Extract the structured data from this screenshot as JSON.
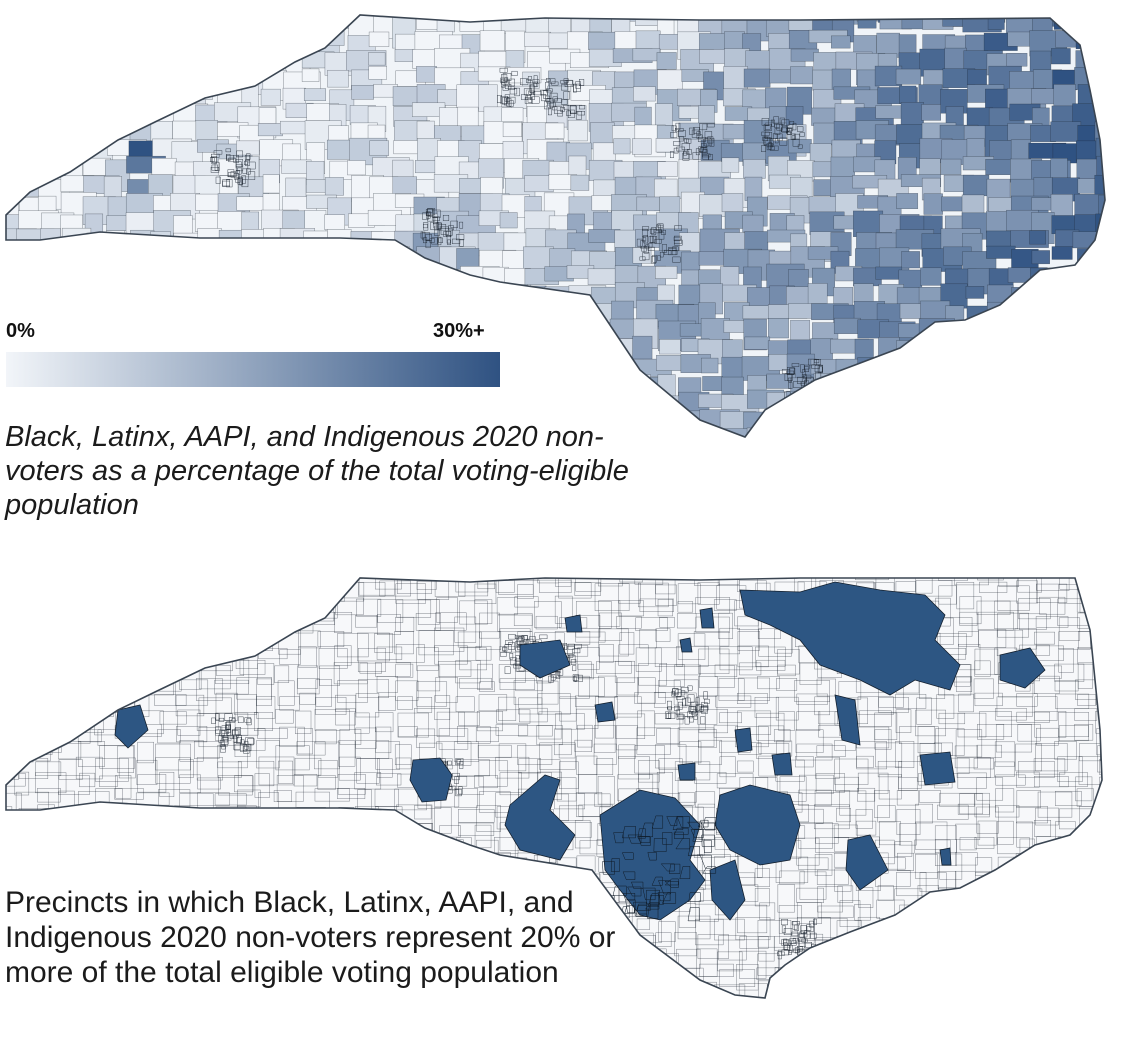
{
  "colors": {
    "legend_low": "#f2f5f9",
    "legend_high": "#2f5282",
    "highlight": "#2d5683",
    "precinct_border": "#1c2530",
    "background": "#ffffff"
  },
  "map_top": {
    "legend": {
      "min_label": "0%",
      "max_label": "30%+"
    },
    "caption": "Black, Latinx, AAPI, and Indigenous 2020 non-voters as a percentage of the total voting-eligible population"
  },
  "map_bottom": {
    "threshold_percent": 20,
    "caption": "Precincts in which Black, Latinx, AAPI, and Indigenous 2020 non-voters represent 20% or more of the total eligible voting population"
  }
}
